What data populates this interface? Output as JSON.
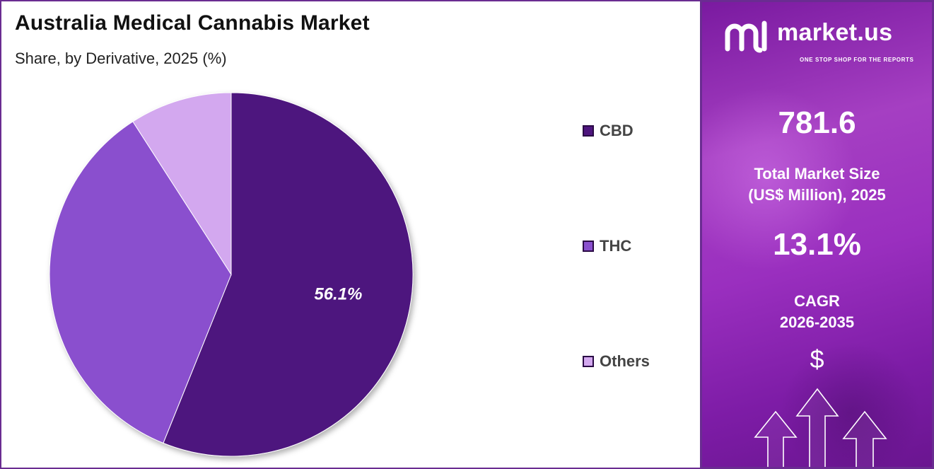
{
  "header": {
    "title": "Australia Medical Cannabis Market",
    "subtitle": "Share, by Derivative, 2025 (%)"
  },
  "chart_data": {
    "type": "pie",
    "title": "Australia Medical Cannabis Market",
    "subtitle": "Share, by Derivative, 2025 (%)",
    "categories": [
      "CBD",
      "THC",
      "Others"
    ],
    "values": [
      56.1,
      34.8,
      9.1
    ],
    "data_labels": [
      "56.1%",
      "",
      ""
    ],
    "colors": [
      "#4e157e",
      "#8a4fce",
      "#d3a8ef"
    ],
    "legend_position": "right"
  },
  "legend": {
    "items": [
      {
        "label": "CBD",
        "color": "#4e157e"
      },
      {
        "label": "THC",
        "color": "#8a4fce"
      },
      {
        "label": "Others",
        "color": "#d3a8ef"
      }
    ]
  },
  "sidebar": {
    "logo_text": "market.us",
    "logo_tagline": "ONE STOP SHOP FOR THE REPORTS",
    "market_size_value": "781.6",
    "market_size_label_1": "Total Market Size",
    "market_size_label_2": "(US$ Million), 2025",
    "cagr_value": "13.1%",
    "cagr_label_1": "CAGR",
    "cagr_label_2": "2026-2035",
    "currency_symbol": "$",
    "icons": [
      "marketus-logo-icon",
      "up-arrow-icon",
      "up-arrow-icon",
      "up-arrow-icon"
    ]
  }
}
